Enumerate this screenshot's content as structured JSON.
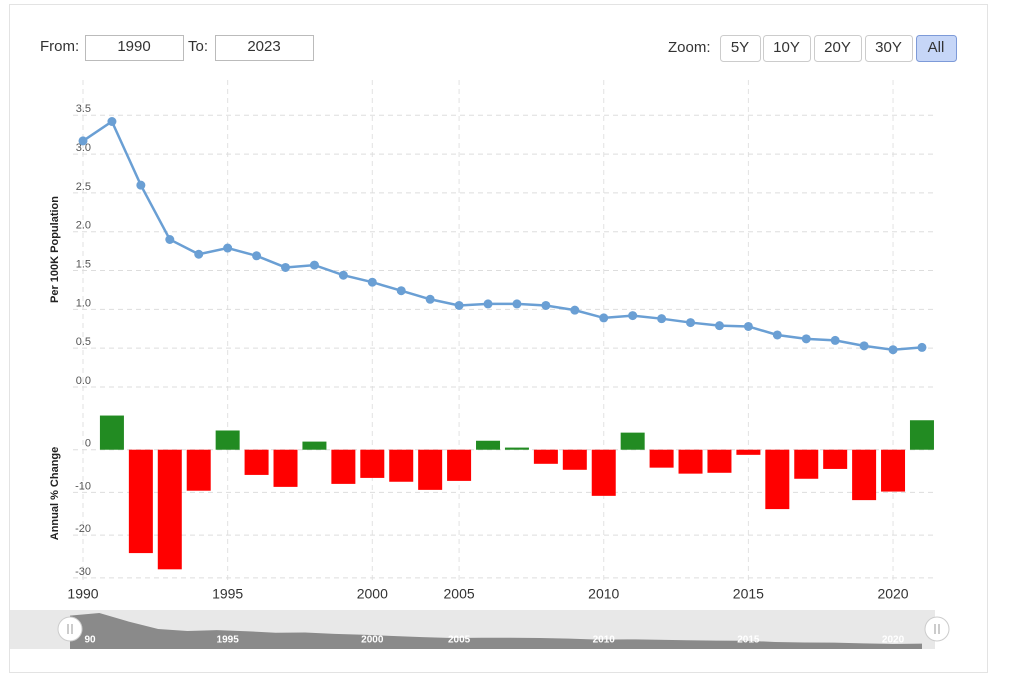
{
  "controls": {
    "from_label": "From:",
    "from_value": "1990",
    "to_label": "To:",
    "to_value": "2023",
    "zoom_label": "Zoom:",
    "zoom_buttons": [
      "5Y",
      "10Y",
      "20Y",
      "30Y",
      "All"
    ],
    "active_zoom": 4
  },
  "chart_data": [
    {
      "type": "line",
      "y_label": "Per 100K Population",
      "color": "#6a9fd4",
      "values": [
        3.17,
        3.42,
        2.6,
        1.9,
        1.71,
        1.79,
        1.69,
        1.54,
        1.57,
        1.44,
        1.35,
        1.24,
        1.13,
        1.05,
        1.07,
        1.07,
        1.05,
        0.99,
        0.89,
        0.92,
        0.88,
        0.83,
        0.79,
        0.78,
        0.67,
        0.62,
        0.6,
        0.53,
        0.48,
        0.51
      ],
      "ylim": [
        0,
        3.8
      ],
      "yticks": [
        {
          "value": 0,
          "label": "0.0"
        },
        0.5,
        {
          "value": 1,
          "label": "1.0"
        },
        1.5,
        {
          "value": 2,
          "label": "2.0"
        },
        2.5,
        {
          "value": 3,
          "label": "3.0"
        },
        3.5
      ],
      "grid": true
    },
    {
      "type": "bar",
      "y_label": "Annual % Change",
      "positive_color": "#228b22",
      "negative_color": "#ff0000",
      "categories": [
        "1990",
        null,
        null,
        null,
        null,
        "1995",
        null,
        null,
        null,
        null,
        "2000",
        null,
        null,
        "2005",
        null,
        null,
        null,
        null,
        "2010",
        null,
        null,
        null,
        null,
        "2015",
        null,
        null,
        null,
        null,
        "2020",
        null
      ],
      "values": [
        null,
        8,
        -24.2,
        -28,
        -9.6,
        4.5,
        -5.9,
        -8.7,
        1.9,
        -8,
        -6.6,
        -7.5,
        -9.4,
        -7.3,
        2.1,
        0.5,
        -3.3,
        -4.7,
        -10.8,
        4,
        -4.2,
        -5.6,
        -5.4,
        -1.2,
        -13.9,
        -6.8,
        -4.5,
        -11.8,
        -9.8,
        6.9
      ],
      "ylim": [
        -30.5,
        10
      ],
      "yticks": [
        0,
        -10,
        -20,
        -30
      ],
      "grid": true
    }
  ],
  "navigator": {
    "labels": [
      "90",
      "1995",
      "2000",
      "2005",
      "2010",
      "2015",
      "2020"
    ]
  }
}
